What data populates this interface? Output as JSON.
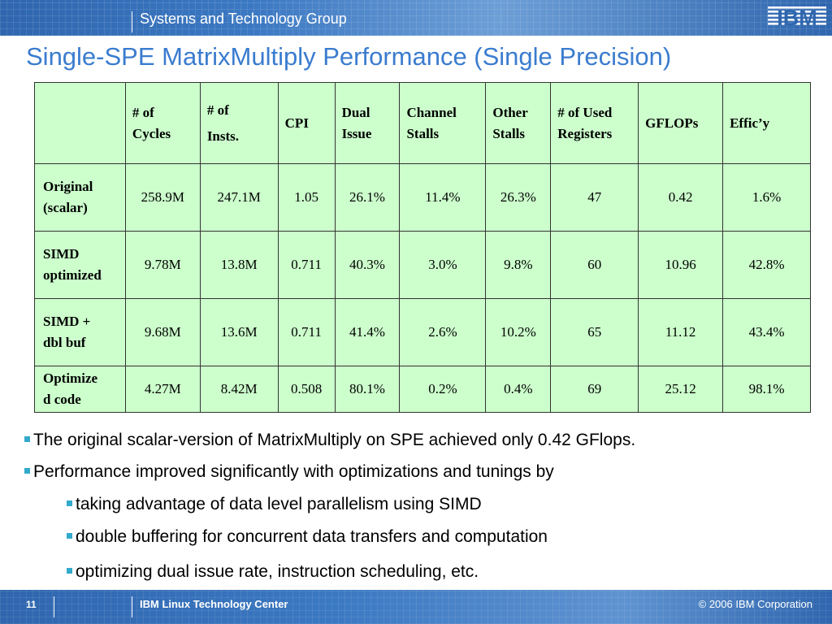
{
  "header": {
    "group": "Systems and Technology Group",
    "logo_text": "IBM",
    "bg_color": "#3b78c2"
  },
  "slide": {
    "title": "Single-SPE MatrixMultiply Performance (Single Precision)",
    "title_color": "#3a7ccf"
  },
  "table": {
    "bg_color": "#ccffcc",
    "columns": [
      {
        "line1": "",
        "line2": ""
      },
      {
        "line1": "# of",
        "line2": "Cycles"
      },
      {
        "line1": "# of",
        "line2": "Insts."
      },
      {
        "line1": "CPI",
        "line2": ""
      },
      {
        "line1": "Dual",
        "line2": "Issue"
      },
      {
        "line1": "Channel",
        "line2": "Stalls"
      },
      {
        "line1": "Other",
        "line2": "Stalls"
      },
      {
        "line1": "# of Used",
        "line2": "Registers"
      },
      {
        "line1": "GFLOPs",
        "line2": ""
      },
      {
        "line1": "Effic’y",
        "line2": ""
      }
    ],
    "rows": [
      {
        "label1": "Original",
        "label2": "(scalar)",
        "values": [
          "258.9M",
          "247.1M",
          "1.05",
          "26.1%",
          "11.4%",
          "26.3%",
          "47",
          "0.42",
          "1.6%"
        ]
      },
      {
        "label1": "SIMD",
        "label2": "optimized",
        "values": [
          "9.78M",
          "13.8M",
          "0.711",
          "40.3%",
          "3.0%",
          "9.8%",
          "60",
          "10.96",
          "42.8%"
        ]
      },
      {
        "label1": "SIMD +",
        "label2": "dbl buf",
        "values": [
          "9.68M",
          "13.6M",
          "0.711",
          "41.4%",
          "2.6%",
          "10.2%",
          "65",
          "11.12",
          "43.4%"
        ]
      },
      {
        "label1": "Optimize",
        "label2": "d code",
        "values": [
          "4.27M",
          "8.42M",
          "0.508",
          "80.1%",
          "0.2%",
          "0.4%",
          "69",
          "25.12",
          "98.1%"
        ]
      }
    ]
  },
  "bullets": [
    {
      "text": "The original scalar-version of MatrixMultiply on SPE achieved only 0.42 GFlops.",
      "level": 1
    },
    {
      "text": "Performance improved significantly with optimizations and tunings by",
      "level": 1
    },
    {
      "text": "taking advantage of data level parallelism using SIMD",
      "level": 2
    },
    {
      "text": "double buffering for concurrent data transfers and computation",
      "level": 2
    },
    {
      "text": "optimizing dual issue rate, instruction scheduling, etc.",
      "level": 2
    }
  ],
  "footer": {
    "page_number": "11",
    "center": "IBM Linux Technology Center",
    "copyright": "© 2006 IBM Corporation"
  }
}
